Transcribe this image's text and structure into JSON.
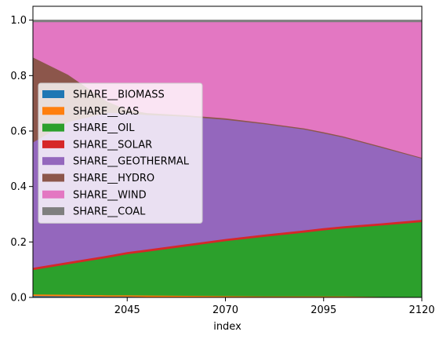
{
  "chart_data": {
    "type": "area",
    "stacked": true,
    "xlabel": "index",
    "ylabel": "",
    "xlim": [
      2021,
      2120
    ],
    "ylim": [
      0,
      1.05
    ],
    "x": [
      2021,
      2030,
      2040,
      2045,
      2050,
      2060,
      2070,
      2080,
      2090,
      2095,
      2100,
      2110,
      2120
    ],
    "xticks": [
      2045,
      2070,
      2095,
      2120
    ],
    "xtick_labels": [
      "2045",
      "2070",
      "2095",
      "2120"
    ],
    "yticks": [
      0.0,
      0.2,
      0.4,
      0.6,
      0.8,
      1.0
    ],
    "ytick_labels": [
      "0.0",
      "0.2",
      "0.4",
      "0.6",
      "0.8",
      "1.0"
    ],
    "legend_position": "center-left",
    "series": [
      {
        "name": "SHARE__BIOMASS",
        "color": "#1f77b4",
        "values": [
          0.006,
          0.005,
          0.004,
          0.004,
          0.003,
          0.003,
          0.002,
          0.002,
          0.002,
          0.002,
          0.002,
          0.001,
          0.001
        ]
      },
      {
        "name": "SHARE__GAS",
        "color": "#ff7f0e",
        "values": [
          0.006,
          0.006,
          0.005,
          0.005,
          0.005,
          0.004,
          0.004,
          0.003,
          0.003,
          0.003,
          0.003,
          0.002,
          0.002
        ]
      },
      {
        "name": "SHARE__OIL",
        "color": "#2ca02c",
        "values": [
          0.088,
          0.11,
          0.135,
          0.148,
          0.158,
          0.178,
          0.198,
          0.215,
          0.23,
          0.238,
          0.245,
          0.258,
          0.27
        ]
      },
      {
        "name": "SHARE__SOLAR",
        "color": "#d62728",
        "values": [
          0.008,
          0.008,
          0.008,
          0.008,
          0.008,
          0.008,
          0.008,
          0.008,
          0.008,
          0.008,
          0.008,
          0.008,
          0.008
        ]
      },
      {
        "name": "SHARE__GEOTHERMAL",
        "color": "#9467bd",
        "values": [
          0.452,
          0.505,
          0.515,
          0.5,
          0.485,
          0.46,
          0.43,
          0.398,
          0.364,
          0.342,
          0.32,
          0.271,
          0.221
        ]
      },
      {
        "name": "SHARE__HYDRO",
        "color": "#8c564b",
        "values": [
          0.307,
          0.17,
          0.04,
          0.013,
          0.007,
          0.005,
          0.005,
          0.004,
          0.004,
          0.004,
          0.004,
          0.004,
          0.003
        ]
      },
      {
        "name": "SHARE__WIND",
        "color": "#e377c2",
        "values": [
          0.127,
          0.19,
          0.287,
          0.316,
          0.328,
          0.336,
          0.347,
          0.364,
          0.383,
          0.397,
          0.412,
          0.45,
          0.489
        ]
      },
      {
        "name": "SHARE__COAL",
        "color": "#7f7f7f",
        "values": [
          0.006,
          0.006,
          0.006,
          0.006,
          0.006,
          0.006,
          0.006,
          0.006,
          0.006,
          0.006,
          0.006,
          0.006,
          0.006
        ]
      }
    ]
  }
}
